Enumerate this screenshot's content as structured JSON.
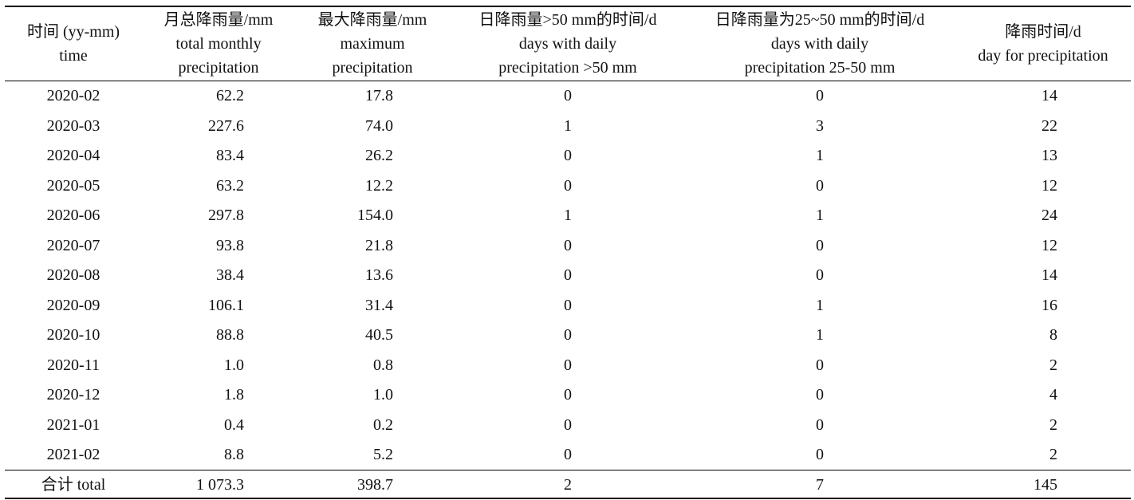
{
  "table": {
    "header": [
      [
        "时间 (yy-mm)",
        "time"
      ],
      [
        "月总降雨量/mm",
        "total monthly",
        "precipitation"
      ],
      [
        "最大降雨量/mm",
        "maximum",
        "precipitation"
      ],
      [
        "日降雨量>50 mm的时间/d",
        "days with daily",
        "precipitation >50 mm"
      ],
      [
        "日降雨量为25~50 mm的时间/d",
        "days with daily",
        "precipitation 25-50 mm"
      ],
      [
        "降雨时间/d",
        "day for precipitation"
      ]
    ],
    "rows": [
      [
        "2020-02",
        "62.2",
        "17.8",
        "0",
        "0",
        "14"
      ],
      [
        "2020-03",
        "227.6",
        "74.0",
        "1",
        "3",
        "22"
      ],
      [
        "2020-04",
        "83.4",
        "26.2",
        "0",
        "1",
        "13"
      ],
      [
        "2020-05",
        "63.2",
        "12.2",
        "0",
        "0",
        "12"
      ],
      [
        "2020-06",
        "297.8",
        "154.0",
        "1",
        "1",
        "24"
      ],
      [
        "2020-07",
        "93.8",
        "21.8",
        "0",
        "0",
        "12"
      ],
      [
        "2020-08",
        "38.4",
        "13.6",
        "0",
        "0",
        "14"
      ],
      [
        "2020-09",
        "106.1",
        "31.4",
        "0",
        "1",
        "16"
      ],
      [
        "2020-10",
        "88.8",
        "40.5",
        "0",
        "1",
        "8"
      ],
      [
        "2020-11",
        "1.0",
        "0.8",
        "0",
        "0",
        "2"
      ],
      [
        "2020-12",
        "1.8",
        "1.0",
        "0",
        "0",
        "4"
      ],
      [
        "2021-01",
        "0.4",
        "0.2",
        "0",
        "0",
        "2"
      ],
      [
        "2021-02",
        "8.8",
        "5.2",
        "0",
        "0",
        "2"
      ]
    ],
    "total": [
      "合计 total",
      "1 073.3",
      "398.7",
      "2",
      "7",
      "145"
    ]
  }
}
